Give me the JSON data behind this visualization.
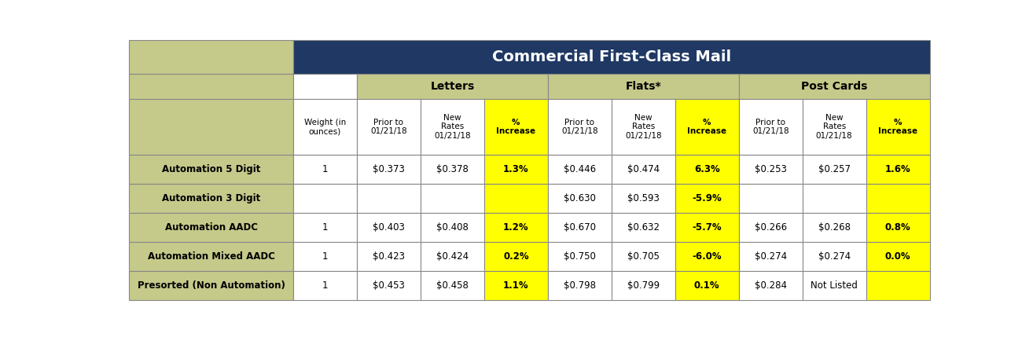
{
  "title": "Commercial First-Class Mail",
  "title_bg": "#1F3864",
  "title_fg": "#FFFFFF",
  "header_bg": "#C5C98A",
  "yellow": "#FFFF00",
  "white": "#FFFFFF",
  "col_headers": [
    "Weight (in\nounces)",
    "Prior to\n01/21/18",
    "New\nRates\n01/21/18",
    "%\nIncrease",
    "Prior to\n01/21/18",
    "New\nRates\n01/21/18",
    "%\nIncrease",
    "Prior to\n01/21/18",
    "New\nRates\n01/21/18",
    "%\nIncrease"
  ],
  "col_header_colors": [
    "#FFFFFF",
    "#FFFFFF",
    "#FFFFFF",
    "#FFFF00",
    "#FFFFFF",
    "#FFFFFF",
    "#FFFF00",
    "#FFFFFF",
    "#FFFFFF",
    "#FFFF00"
  ],
  "rows": [
    {
      "label": "Automation 5 Digit",
      "values": [
        "1",
        "$0.373",
        "$0.378",
        "1.3%",
        "$0.446",
        "$0.474",
        "6.3%",
        "$0.253",
        "$0.257",
        "1.6%"
      ],
      "cell_colors": [
        "#FFFFFF",
        "#FFFFFF",
        "#FFFFFF",
        "#FFFF00",
        "#FFFFFF",
        "#FFFFFF",
        "#FFFF00",
        "#FFFFFF",
        "#FFFFFF",
        "#FFFF00"
      ]
    },
    {
      "label": "Automation 3 Digit",
      "values": [
        "",
        "",
        "",
        "",
        "$0.630",
        "$0.593",
        "-5.9%",
        "",
        "",
        ""
      ],
      "cell_colors": [
        "#FFFFFF",
        "#FFFFFF",
        "#FFFFFF",
        "#FFFF00",
        "#FFFFFF",
        "#FFFFFF",
        "#FFFF00",
        "#FFFFFF",
        "#FFFFFF",
        "#FFFF00"
      ]
    },
    {
      "label": "Automation AADC",
      "values": [
        "1",
        "$0.403",
        "$0.408",
        "1.2%",
        "$0.670",
        "$0.632",
        "-5.7%",
        "$0.266",
        "$0.268",
        "0.8%"
      ],
      "cell_colors": [
        "#FFFFFF",
        "#FFFFFF",
        "#FFFFFF",
        "#FFFF00",
        "#FFFFFF",
        "#FFFFFF",
        "#FFFF00",
        "#FFFFFF",
        "#FFFFFF",
        "#FFFF00"
      ]
    },
    {
      "label": "Automation Mixed AADC",
      "values": [
        "1",
        "$0.423",
        "$0.424",
        "0.2%",
        "$0.750",
        "$0.705",
        "-6.0%",
        "$0.274",
        "$0.274",
        "0.0%"
      ],
      "cell_colors": [
        "#FFFFFF",
        "#FFFFFF",
        "#FFFFFF",
        "#FFFF00",
        "#FFFFFF",
        "#FFFFFF",
        "#FFFF00",
        "#FFFFFF",
        "#FFFFFF",
        "#FFFF00"
      ]
    },
    {
      "label": "Presorted (Non Automation)",
      "values": [
        "1",
        "$0.453",
        "$0.458",
        "1.1%",
        "$0.798",
        "$0.799",
        "0.1%",
        "$0.284",
        "Not Listed",
        ""
      ],
      "cell_colors": [
        "#FFFFFF",
        "#FFFFFF",
        "#FFFFFF",
        "#FFFF00",
        "#FFFFFF",
        "#FFFFFF",
        "#FFFF00",
        "#FFFFFF",
        "#FFFFFF",
        "#FFFF00"
      ]
    }
  ],
  "figsize": [
    13.14,
    4.29
  ],
  "dpi": 100
}
